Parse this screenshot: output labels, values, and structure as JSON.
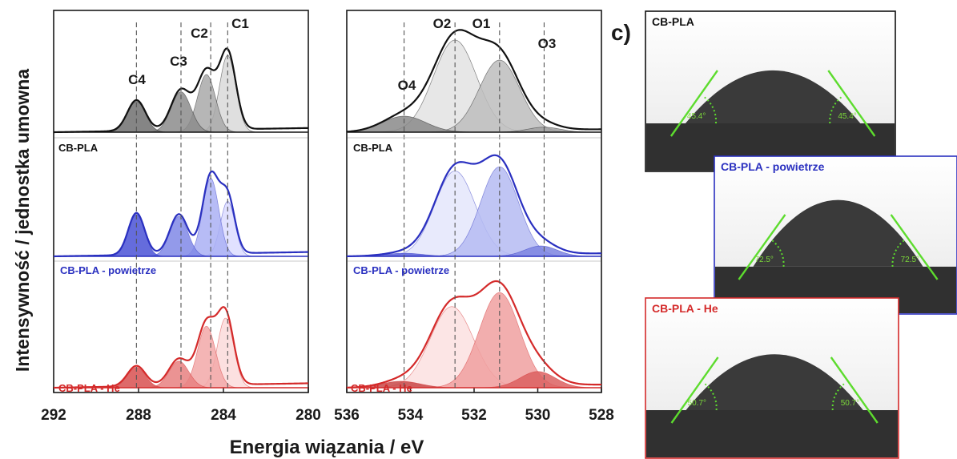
{
  "chart_data": [
    {
      "type": "line",
      "panel": "C1s",
      "xlim": [
        292,
        280
      ],
      "x_ticks": [
        "292",
        "288",
        "284",
        "280"
      ],
      "x_tick_values": [
        292,
        288,
        284,
        280
      ],
      "grid": false,
      "peak_labels": [
        {
          "name": "C1",
          "center": 283.8
        },
        {
          "name": "C2",
          "center": 284.6
        },
        {
          "name": "C3",
          "center": 286.0
        },
        {
          "name": "C4",
          "center": 288.1
        }
      ],
      "series": [
        {
          "name": "CB-PLA",
          "color": "#111111",
          "components": [
            {
              "center": 283.8,
              "height": 0.8,
              "fwhm": 0.9,
              "fill": "#d9d9d9"
            },
            {
              "center": 284.8,
              "height": 0.6,
              "fwhm": 1.0,
              "fill": "#a9a9a9"
            },
            {
              "center": 286.0,
              "height": 0.42,
              "fwhm": 1.1,
              "fill": "#8c8c8c"
            },
            {
              "center": 288.1,
              "height": 0.32,
              "fwhm": 1.0,
              "fill": "#707070"
            }
          ]
        },
        {
          "name": "CB-PLA - powietrze",
          "color": "#2a30c0",
          "components": [
            {
              "center": 283.8,
              "height": 0.55,
              "fwhm": 0.8,
              "fill": "#dcdcff"
            },
            {
              "center": 284.6,
              "height": 0.78,
              "fwhm": 0.9,
              "fill": "#aab0f5"
            },
            {
              "center": 286.1,
              "height": 0.4,
              "fwhm": 1.0,
              "fill": "#8088e6"
            },
            {
              "center": 288.1,
              "height": 0.42,
              "fwhm": 0.9,
              "fill": "#4a52d6"
            }
          ]
        },
        {
          "name": "CB-PLA - He",
          "color": "#d42a2a",
          "components": [
            {
              "center": 283.9,
              "height": 0.68,
              "fwhm": 0.9,
              "fill": "#fbdada"
            },
            {
              "center": 284.8,
              "height": 0.6,
              "fwhm": 1.0,
              "fill": "#f2a8a8"
            },
            {
              "center": 286.1,
              "height": 0.26,
              "fwhm": 1.1,
              "fill": "#e88080"
            },
            {
              "center": 288.1,
              "height": 0.2,
              "fwhm": 1.0,
              "fill": "#d85050"
            }
          ]
        }
      ]
    },
    {
      "type": "line",
      "panel": "O1s",
      "xlim": [
        536,
        528
      ],
      "x_ticks": [
        "536",
        "534",
        "532",
        "530",
        "528"
      ],
      "x_tick_values": [
        536,
        534,
        532,
        530,
        528
      ],
      "grid": false,
      "peak_labels": [
        {
          "name": "O1",
          "center": 531.2
        },
        {
          "name": "O2",
          "center": 532.6
        },
        {
          "name": "O3",
          "center": 529.8
        },
        {
          "name": "O4",
          "center": 534.2
        }
      ],
      "series": [
        {
          "name": "CB-PLA",
          "color": "#111111",
          "components": [
            {
              "center": 532.6,
              "height": 0.92,
              "fwhm": 1.6,
              "fill": "#e3e3e3"
            },
            {
              "center": 531.2,
              "height": 0.72,
              "fwhm": 1.5,
              "fill": "#bdbdbd"
            },
            {
              "center": 529.8,
              "height": 0.05,
              "fwhm": 1.2,
              "fill": "#a0a0a0"
            },
            {
              "center": 534.2,
              "height": 0.16,
              "fwhm": 1.6,
              "fill": "#8a8a8a"
            }
          ]
        },
        {
          "name": "CB-PLA - powietrze",
          "color": "#2a30c0",
          "components": [
            {
              "center": 532.6,
              "height": 0.82,
              "fwhm": 1.5,
              "fill": "#e4e6fb"
            },
            {
              "center": 531.2,
              "height": 0.86,
              "fwhm": 1.4,
              "fill": "#b5bbf2"
            },
            {
              "center": 529.9,
              "height": 0.1,
              "fwhm": 1.2,
              "fill": "#7c84e0"
            },
            {
              "center": 534.2,
              "height": 0.03,
              "fwhm": 1.4,
              "fill": "#5a62d8"
            }
          ]
        },
        {
          "name": "CB-PLA - He",
          "color": "#d42a2a",
          "components": [
            {
              "center": 532.7,
              "height": 0.75,
              "fwhm": 1.6,
              "fill": "#fce0e0"
            },
            {
              "center": 531.2,
              "height": 0.88,
              "fwhm": 1.5,
              "fill": "#f0a0a0"
            },
            {
              "center": 530.0,
              "height": 0.15,
              "fwhm": 1.3,
              "fill": "#dc6060"
            },
            {
              "center": 534.3,
              "height": 0.06,
              "fwhm": 1.4,
              "fill": "#c84848"
            }
          ]
        }
      ]
    }
  ],
  "axes": {
    "xlabel": "Energia wiązania / eV",
    "ylabel": "Intensywność / jednostka umowna"
  },
  "panel_letter": "c)",
  "contact_angle": {
    "photos": [
      {
        "title": "CB-PLA",
        "title_color": "#111111",
        "border_color": "#111111",
        "angle_value": 45.4,
        "angle_left": "45.4°",
        "angle_right": "45.4°"
      },
      {
        "title": "CB-PLA - powietrze",
        "title_color": "#2a30c0",
        "border_color": "#2a30c0",
        "angle_value": 72.5,
        "angle_left": "72.5°",
        "angle_right": "72.5°"
      },
      {
        "title": "CB-PLA - He",
        "title_color": "#d42a2a",
        "border_color": "#d42a2a",
        "angle_value": 50.7,
        "angle_left": "50.7°",
        "angle_right": "50.7°"
      }
    ]
  }
}
